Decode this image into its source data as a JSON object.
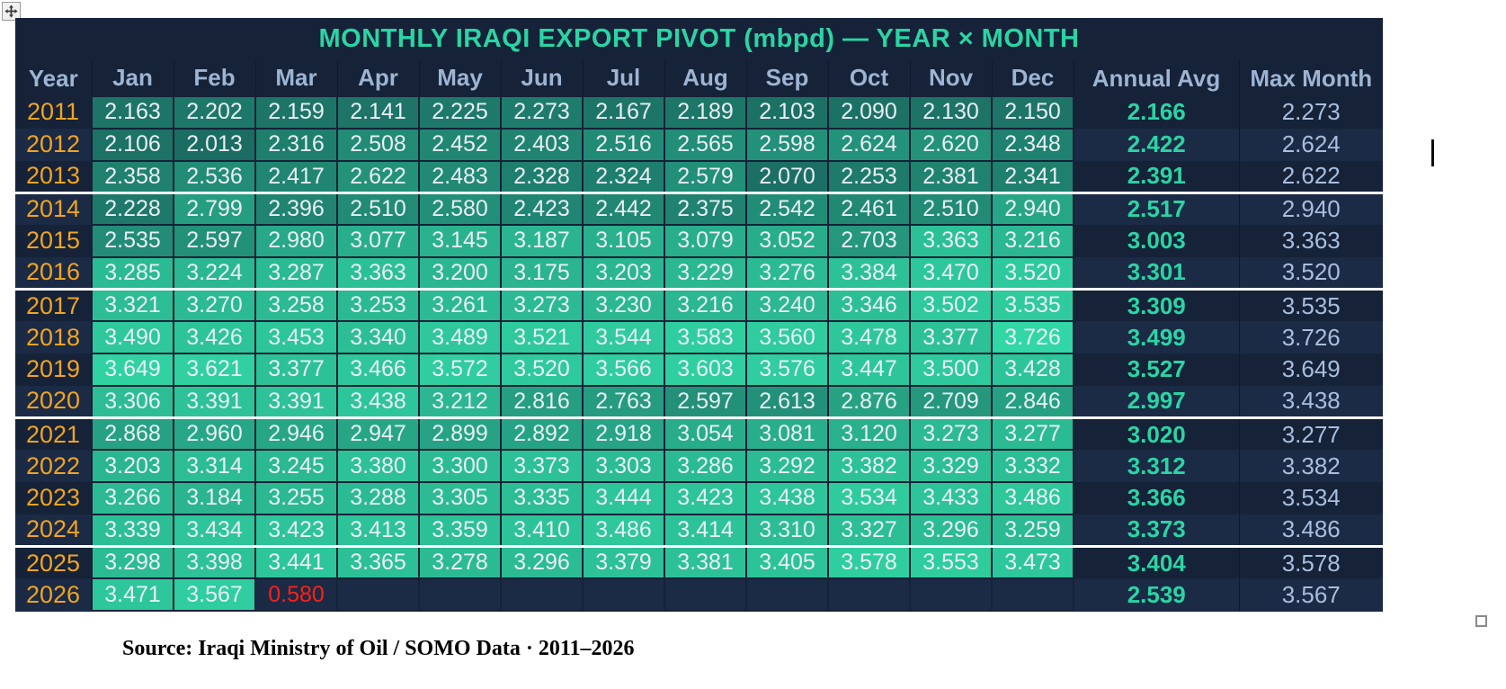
{
  "chart_data": {
    "type": "table",
    "title": "MONTHLY IRAQI EXPORT PIVOT (mbpd) — YEAR × MONTH",
    "unit": "mbpd",
    "columns": [
      "Year",
      "Jan",
      "Feb",
      "Mar",
      "Apr",
      "May",
      "Jun",
      "Jul",
      "Aug",
      "Sep",
      "Oct",
      "Nov",
      "Dec",
      "Annual Avg",
      "Max Month"
    ],
    "rows": [
      {
        "year": "2011",
        "months": [
          "2.163",
          "2.202",
          "2.159",
          "2.141",
          "2.225",
          "2.273",
          "2.167",
          "2.189",
          "2.103",
          "2.090",
          "2.130",
          "2.150"
        ],
        "annual_avg": "2.166",
        "max_month": "2.273"
      },
      {
        "year": "2012",
        "months": [
          "2.106",
          "2.013",
          "2.316",
          "2.508",
          "2.452",
          "2.403",
          "2.516",
          "2.565",
          "2.598",
          "2.624",
          "2.620",
          "2.348"
        ],
        "annual_avg": "2.422",
        "max_month": "2.624"
      },
      {
        "year": "2013",
        "months": [
          "2.358",
          "2.536",
          "2.417",
          "2.622",
          "2.483",
          "2.328",
          "2.324",
          "2.579",
          "2.070",
          "2.253",
          "2.381",
          "2.341"
        ],
        "annual_avg": "2.391",
        "max_month": "2.622"
      },
      {
        "year": "2014",
        "months": [
          "2.228",
          "2.799",
          "2.396",
          "2.510",
          "2.580",
          "2.423",
          "2.442",
          "2.375",
          "2.542",
          "2.461",
          "2.510",
          "2.940"
        ],
        "annual_avg": "2.517",
        "max_month": "2.940"
      },
      {
        "year": "2015",
        "months": [
          "2.535",
          "2.597",
          "2.980",
          "3.077",
          "3.145",
          "3.187",
          "3.105",
          "3.079",
          "3.052",
          "2.703",
          "3.363",
          "3.216"
        ],
        "annual_avg": "3.003",
        "max_month": "3.363"
      },
      {
        "year": "2016",
        "months": [
          "3.285",
          "3.224",
          "3.287",
          "3.363",
          "3.200",
          "3.175",
          "3.203",
          "3.229",
          "3.276",
          "3.384",
          "3.470",
          "3.520"
        ],
        "annual_avg": "3.301",
        "max_month": "3.520"
      },
      {
        "year": "2017",
        "months": [
          "3.321",
          "3.270",
          "3.258",
          "3.253",
          "3.261",
          "3.273",
          "3.230",
          "3.216",
          "3.240",
          "3.346",
          "3.502",
          "3.535"
        ],
        "annual_avg": "3.309",
        "max_month": "3.535"
      },
      {
        "year": "2018",
        "months": [
          "3.490",
          "3.426",
          "3.453",
          "3.340",
          "3.489",
          "3.521",
          "3.544",
          "3.583",
          "3.560",
          "3.478",
          "3.377",
          "3.726"
        ],
        "annual_avg": "3.499",
        "max_month": "3.726"
      },
      {
        "year": "2019",
        "months": [
          "3.649",
          "3.621",
          "3.377",
          "3.466",
          "3.572",
          "3.520",
          "3.566",
          "3.603",
          "3.576",
          "3.447",
          "3.500",
          "3.428"
        ],
        "annual_avg": "3.527",
        "max_month": "3.649"
      },
      {
        "year": "2020",
        "months": [
          "3.306",
          "3.391",
          "3.391",
          "3.438",
          "3.212",
          "2.816",
          "2.763",
          "2.597",
          "2.613",
          "2.876",
          "2.709",
          "2.846"
        ],
        "annual_avg": "2.997",
        "max_month": "3.438"
      },
      {
        "year": "2021",
        "months": [
          "2.868",
          "2.960",
          "2.946",
          "2.947",
          "2.899",
          "2.892",
          "2.918",
          "3.054",
          "3.081",
          "3.120",
          "3.273",
          "3.277"
        ],
        "annual_avg": "3.020",
        "max_month": "3.277"
      },
      {
        "year": "2022",
        "months": [
          "3.203",
          "3.314",
          "3.245",
          "3.380",
          "3.300",
          "3.373",
          "3.303",
          "3.286",
          "3.292",
          "3.382",
          "3.329",
          "3.332"
        ],
        "annual_avg": "3.312",
        "max_month": "3.382"
      },
      {
        "year": "2023",
        "months": [
          "3.266",
          "3.184",
          "3.255",
          "3.288",
          "3.305",
          "3.335",
          "3.444",
          "3.423",
          "3.438",
          "3.534",
          "3.433",
          "3.486"
        ],
        "annual_avg": "3.366",
        "max_month": "3.534"
      },
      {
        "year": "2024",
        "months": [
          "3.339",
          "3.434",
          "3.423",
          "3.413",
          "3.359",
          "3.410",
          "3.486",
          "3.414",
          "3.310",
          "3.327",
          "3.296",
          "3.259"
        ],
        "annual_avg": "3.373",
        "max_month": "3.486"
      },
      {
        "year": "2025",
        "months": [
          "3.298",
          "3.398",
          "3.441",
          "3.365",
          "3.278",
          "3.296",
          "3.379",
          "3.381",
          "3.405",
          "3.578",
          "3.553",
          "3.473"
        ],
        "annual_avg": "3.404",
        "max_month": "3.578"
      },
      {
        "year": "2026",
        "months": [
          "3.471",
          "3.567",
          "0.580",
          "",
          "",
          "",
          "",
          "",
          "",
          "",
          "",
          ""
        ],
        "annual_avg": "2.539",
        "max_month": "3.567",
        "red_months": [
          2
        ]
      }
    ],
    "separator_after_years": [
      "2013",
      "2016",
      "2020",
      "2024"
    ],
    "heatmap_value_range": [
      2.0,
      3.73
    ]
  },
  "footer": {
    "source": "Source: Iraqi Ministry of Oil / SOMO Data · 2011–2026"
  },
  "icons": {
    "move_handle": "four-way-arrow",
    "resize_handle": "small-square",
    "caret": "vertical-bar"
  },
  "colors": {
    "page_bg": "#ffffff",
    "table_bg": "#152238",
    "row_alt_bg": "#1b2a45",
    "title_text": "#2bd4a4",
    "month_header_text": "#9db4d2",
    "year_text": "#f0a41f",
    "cell_text": "#e9eef4",
    "annual_avg_text": "#2bd4a4",
    "max_month_text": "#a9bedd",
    "red_value": "#ff2018",
    "heat_low": "#1b6b61",
    "heat_high": "#31d7a5",
    "separator_line": "#ffffff"
  }
}
